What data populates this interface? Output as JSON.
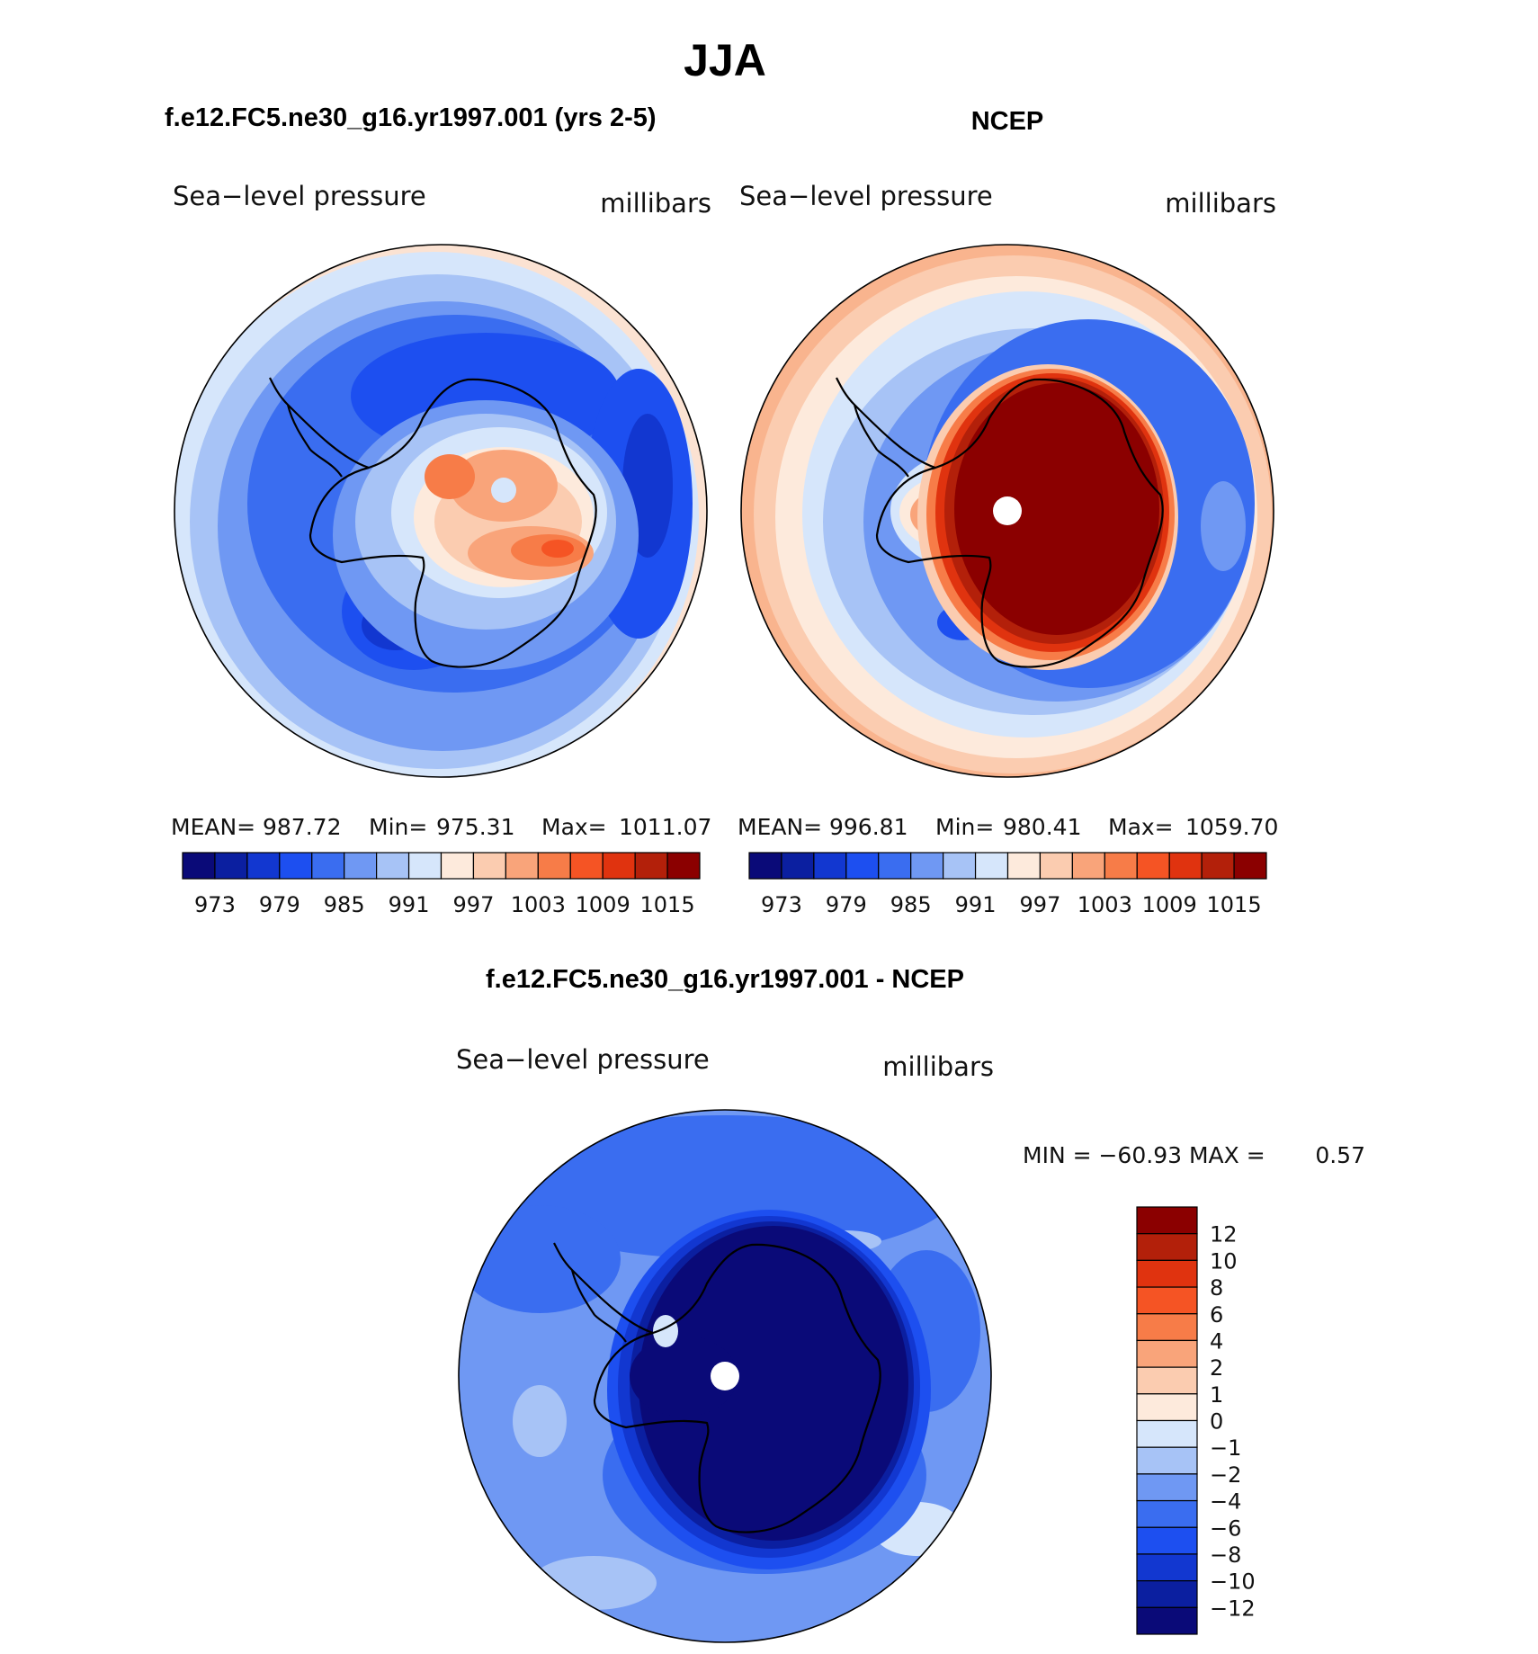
{
  "figure": {
    "title": "JJA",
    "panels": [
      {
        "id": "model",
        "heading": "f.e12.FC5.ne30_g16.yr1997.001 (yrs 2-5)",
        "field_label": "Sea−level pressure",
        "units": "millibars",
        "stats": {
          "mean_label": "MEAN=",
          "mean": "987.72",
          "min_label": "Min=",
          "min": "975.31",
          "max_label": "Max=",
          "max": "1011.07"
        }
      },
      {
        "id": "ncep",
        "heading": "NCEP",
        "field_label": "Sea−level pressure",
        "units": "millibars",
        "stats": {
          "mean_label": "MEAN=",
          "mean": "996.81",
          "min_label": "Min=",
          "min": "980.41",
          "max_label": "Max=",
          "max": "1059.70"
        }
      },
      {
        "id": "diff",
        "heading": "f.e12.FC5.ne30_g16.yr1997.001 - NCEP",
        "field_label": "Sea−level pressure",
        "units": "millibars",
        "minmax_text": "MIN = −60.93 MAX =",
        "max_value": "0.57"
      }
    ],
    "colorbar_abs": {
      "colors": [
        "#0a0a78",
        "#0b1fa0",
        "#1237d0",
        "#1d4ff0",
        "#3a6df0",
        "#6f98f3",
        "#a7c3f6",
        "#d6e6fb",
        "#fdeadc",
        "#fbccb0",
        "#f9a47a",
        "#f77c48",
        "#f55424",
        "#e0330f",
        "#b3200a",
        "#8b0000"
      ],
      "tick_labels": [
        "973",
        "979",
        "985",
        "991",
        "997",
        "1003",
        "1009",
        "1015"
      ]
    },
    "colorbar_diff": {
      "colors": [
        "#0a0a78",
        "#0b1fa0",
        "#1237d0",
        "#1d4ff0",
        "#3a6df0",
        "#6f98f3",
        "#a7c3f6",
        "#d6e6fb",
        "#fdeadc",
        "#fbccb0",
        "#f9a47a",
        "#f77c48",
        "#f55424",
        "#e0330f",
        "#b3200a",
        "#8b0000"
      ],
      "tick_labels": [
        "12",
        "10",
        "8",
        "6",
        "4",
        "2",
        "1",
        "0",
        "−1",
        "−2",
        "−4",
        "−6",
        "−8",
        "−10",
        "−12"
      ]
    }
  }
}
